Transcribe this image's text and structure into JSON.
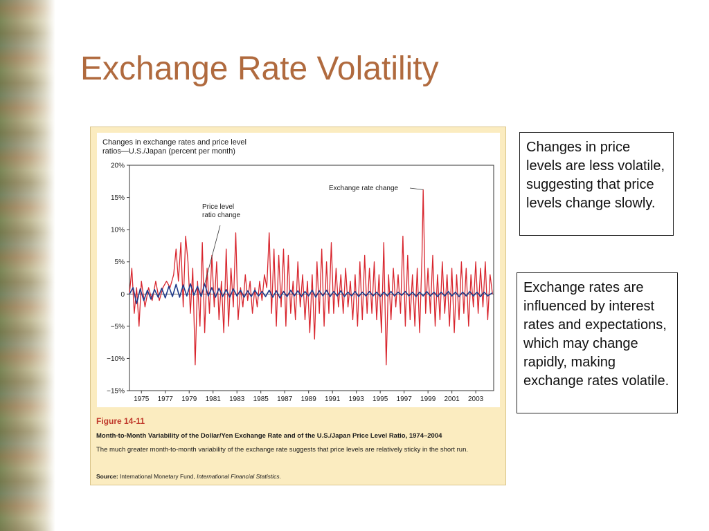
{
  "slide": {
    "title": "Exchange Rate Volatility"
  },
  "figure": {
    "label": "Figure 14-11",
    "caption": "Month-to-Month Variability of the Dollar/Yen Exchange Rate and of the U.S./Japan Price Level Ratio, 1974–2004",
    "description": "The much greater month-to-month variability of the exchange rate suggests that price levels are relatively sticky in the short run.",
    "source_label": "Source:",
    "source_text": "International Monetary Fund,",
    "source_italic": "International Financial Statistics."
  },
  "notes": [
    "Changes in price levels are less volatile, suggesting that price levels change slowly.",
    "Exchange rates are influenced by interest rates and expectations, which may change rapidly, making exchange rates volatile."
  ],
  "colors": {
    "title": "#b06a3e",
    "exchange_rate_line": "#d8262e",
    "price_level_line": "#1f3a8a",
    "figure_bg": "#fbecc0",
    "figure_label": "#c0392b"
  },
  "chart_data": {
    "type": "line",
    "title": "Changes in exchange rates and price level ratios—U.S./Japan (percent per month)",
    "title_lines": [
      "Changes in exchange rates and price level",
      "ratios—U.S./Japan (percent per month)"
    ],
    "xlabel": "",
    "ylabel": "",
    "xlim": [
      1974,
      2004.5
    ],
    "ylim": [
      -15,
      20
    ],
    "y_ticks": [
      {
        "value": 20,
        "label": "20%"
      },
      {
        "value": 15,
        "label": "15%"
      },
      {
        "value": 10,
        "label": "10%"
      },
      {
        "value": 5,
        "label": "5%"
      },
      {
        "value": 0,
        "label": "0"
      },
      {
        "value": -5,
        "label": "−5%"
      },
      {
        "value": -10,
        "label": "−10%"
      },
      {
        "value": -15,
        "label": "−15%"
      }
    ],
    "x_ticks": [
      1975,
      1977,
      1979,
      1981,
      1983,
      1985,
      1987,
      1989,
      1991,
      1993,
      1995,
      1997,
      1999,
      2001,
      2003
    ],
    "grid": false,
    "annotations": [
      {
        "text": "Exchange rate change",
        "series": "exchange",
        "x": 1998.6,
        "y": 16.2
      },
      {
        "text": "Price level\nratio change",
        "series": "price",
        "x": 1980.3,
        "y": 1.6
      }
    ],
    "series": [
      {
        "name": "Exchange rate change",
        "key": "exchange",
        "color": "#d8262e",
        "points": [
          [
            1974.0,
            0
          ],
          [
            1974.2,
            4
          ],
          [
            1974.4,
            -3
          ],
          [
            1974.6,
            1
          ],
          [
            1974.8,
            -5
          ],
          [
            1975.0,
            2
          ],
          [
            1975.3,
            -2
          ],
          [
            1975.6,
            1
          ],
          [
            1975.9,
            -1
          ],
          [
            1976.2,
            2
          ],
          [
            1976.5,
            -1
          ],
          [
            1976.8,
            1
          ],
          [
            1977.1,
            2
          ],
          [
            1977.4,
            1
          ],
          [
            1977.7,
            3
          ],
          [
            1977.9,
            7
          ],
          [
            1978.1,
            2
          ],
          [
            1978.3,
            8
          ],
          [
            1978.5,
            -2
          ],
          [
            1978.7,
            9
          ],
          [
            1978.9,
            5
          ],
          [
            1979.1,
            -3
          ],
          [
            1979.3,
            4
          ],
          [
            1979.5,
            -11
          ],
          [
            1979.7,
            2
          ],
          [
            1979.9,
            -5
          ],
          [
            1980.1,
            8
          ],
          [
            1980.3,
            -6
          ],
          [
            1980.5,
            4
          ],
          [
            1980.7,
            -3
          ],
          [
            1980.9,
            6
          ],
          [
            1981.1,
            -2
          ],
          [
            1981.3,
            5
          ],
          [
            1981.5,
            -4
          ],
          [
            1981.7,
            2
          ],
          [
            1981.9,
            -6
          ],
          [
            1982.1,
            7
          ],
          [
            1982.3,
            -5
          ],
          [
            1982.5,
            4
          ],
          [
            1982.7,
            -2
          ],
          [
            1982.9,
            9.5
          ],
          [
            1983.1,
            -4
          ],
          [
            1983.3,
            1
          ],
          [
            1983.5,
            -2
          ],
          [
            1983.7,
            3
          ],
          [
            1983.9,
            -1
          ],
          [
            1984.1,
            2
          ],
          [
            1984.3,
            -3
          ],
          [
            1984.5,
            1
          ],
          [
            1984.7,
            -2
          ],
          [
            1984.9,
            2
          ],
          [
            1985.1,
            -1
          ],
          [
            1985.3,
            3
          ],
          [
            1985.5,
            1
          ],
          [
            1985.7,
            9.5
          ],
          [
            1985.9,
            -3
          ],
          [
            1986.1,
            7
          ],
          [
            1986.3,
            -5
          ],
          [
            1986.5,
            6
          ],
          [
            1986.7,
            -2
          ],
          [
            1986.9,
            7
          ],
          [
            1987.1,
            -5
          ],
          [
            1987.3,
            6
          ],
          [
            1987.5,
            -3
          ],
          [
            1987.7,
            2
          ],
          [
            1987.9,
            -4
          ],
          [
            1988.1,
            5
          ],
          [
            1988.3,
            -2
          ],
          [
            1988.5,
            3
          ],
          [
            1988.7,
            -4
          ],
          [
            1988.9,
            2
          ],
          [
            1989.1,
            -6
          ],
          [
            1989.3,
            3
          ],
          [
            1989.5,
            -7
          ],
          [
            1989.7,
            5
          ],
          [
            1989.9,
            -3
          ],
          [
            1990.1,
            7
          ],
          [
            1990.3,
            -5
          ],
          [
            1990.5,
            5
          ],
          [
            1990.7,
            -3
          ],
          [
            1990.9,
            8
          ],
          [
            1991.1,
            -3
          ],
          [
            1991.3,
            4
          ],
          [
            1991.5,
            -2
          ],
          [
            1991.7,
            3
          ],
          [
            1991.9,
            -3
          ],
          [
            1992.1,
            4
          ],
          [
            1992.3,
            -2
          ],
          [
            1992.5,
            2
          ],
          [
            1992.7,
            -4
          ],
          [
            1992.9,
            3
          ],
          [
            1993.1,
            -5
          ],
          [
            1993.3,
            5
          ],
          [
            1993.5,
            -4
          ],
          [
            1993.7,
            6
          ],
          [
            1993.9,
            -3
          ],
          [
            1994.1,
            4
          ],
          [
            1994.3,
            -3
          ],
          [
            1994.5,
            5
          ],
          [
            1994.7,
            -4
          ],
          [
            1994.9,
            3
          ],
          [
            1995.1,
            -6
          ],
          [
            1995.3,
            8
          ],
          [
            1995.5,
            -11
          ],
          [
            1995.7,
            3
          ],
          [
            1995.9,
            -4
          ],
          [
            1996.1,
            4
          ],
          [
            1996.3,
            -2
          ],
          [
            1996.5,
            3
          ],
          [
            1996.7,
            -3
          ],
          [
            1996.9,
            9
          ],
          [
            1997.1,
            -5
          ],
          [
            1997.3,
            6
          ],
          [
            1997.5,
            -4
          ],
          [
            1997.7,
            3
          ],
          [
            1997.9,
            -5
          ],
          [
            1998.1,
            4
          ],
          [
            1998.3,
            -6
          ],
          [
            1998.5,
            6
          ],
          [
            1998.6,
            16.2
          ],
          [
            1998.8,
            -3
          ],
          [
            1999.0,
            4
          ],
          [
            1999.2,
            -3
          ],
          [
            1999.4,
            6
          ],
          [
            1999.6,
            -5
          ],
          [
            1999.8,
            3
          ],
          [
            2000.0,
            -4
          ],
          [
            2000.2,
            5
          ],
          [
            2000.4,
            -3
          ],
          [
            2000.6,
            3
          ],
          [
            2000.8,
            -5
          ],
          [
            2001.0,
            4
          ],
          [
            2001.2,
            -6
          ],
          [
            2001.4,
            3
          ],
          [
            2001.6,
            -4
          ],
          [
            2001.8,
            5
          ],
          [
            2002.0,
            -3
          ],
          [
            2002.2,
            4
          ],
          [
            2002.4,
            -5
          ],
          [
            2002.6,
            3
          ],
          [
            2002.8,
            -2
          ],
          [
            2003.0,
            5
          ],
          [
            2003.2,
            -3
          ],
          [
            2003.4,
            4
          ],
          [
            2003.6,
            -2
          ],
          [
            2003.8,
            5
          ],
          [
            2004.0,
            -4
          ],
          [
            2004.2,
            3
          ],
          [
            2004.4,
            0
          ]
        ]
      },
      {
        "name": "Price level ratio change",
        "key": "price",
        "color": "#1f3a8a",
        "points": [
          [
            1974.0,
            0
          ],
          [
            1974.3,
            1
          ],
          [
            1974.6,
            -1.5
          ],
          [
            1974.9,
            0.8
          ],
          [
            1975.2,
            -1
          ],
          [
            1975.5,
            0.6
          ],
          [
            1975.8,
            -0.8
          ],
          [
            1976.1,
            0.7
          ],
          [
            1976.4,
            -0.5
          ],
          [
            1976.7,
            0.9
          ],
          [
            1977.0,
            -0.6
          ],
          [
            1977.3,
            1.2
          ],
          [
            1977.6,
            -0.4
          ],
          [
            1977.9,
            1.5
          ],
          [
            1978.2,
            -0.5
          ],
          [
            1978.5,
            1.4
          ],
          [
            1978.8,
            -0.3
          ],
          [
            1979.1,
            1.6
          ],
          [
            1979.4,
            -0.2
          ],
          [
            1979.7,
            1.2
          ],
          [
            1980.0,
            -0.4
          ],
          [
            1980.3,
            1.6
          ],
          [
            1980.6,
            -0.3
          ],
          [
            1980.9,
            1.0
          ],
          [
            1981.2,
            -0.5
          ],
          [
            1981.5,
            0.9
          ],
          [
            1981.8,
            -0.4
          ],
          [
            1982.1,
            0.7
          ],
          [
            1982.4,
            -0.5
          ],
          [
            1982.7,
            0.8
          ],
          [
            1983.0,
            -0.3
          ],
          [
            1983.3,
            0.6
          ],
          [
            1983.6,
            -0.5
          ],
          [
            1983.9,
            0.5
          ],
          [
            1984.2,
            -0.4
          ],
          [
            1984.5,
            0.6
          ],
          [
            1984.8,
            -0.3
          ],
          [
            1985.1,
            0.4
          ],
          [
            1985.4,
            -0.4
          ],
          [
            1985.7,
            0.6
          ],
          [
            1986.0,
            -0.5
          ],
          [
            1986.3,
            0.5
          ],
          [
            1986.6,
            -0.6
          ],
          [
            1986.9,
            0.4
          ],
          [
            1987.2,
            -0.4
          ],
          [
            1987.5,
            0.6
          ],
          [
            1987.8,
            -0.3
          ],
          [
            1988.1,
            0.5
          ],
          [
            1988.4,
            -0.4
          ],
          [
            1988.7,
            0.4
          ],
          [
            1989.0,
            -0.3
          ],
          [
            1989.3,
            0.6
          ],
          [
            1989.6,
            -0.5
          ],
          [
            1989.9,
            0.5
          ],
          [
            1990.2,
            -0.3
          ],
          [
            1990.5,
            0.6
          ],
          [
            1990.8,
            -0.4
          ],
          [
            1991.1,
            0.4
          ],
          [
            1991.4,
            -0.3
          ],
          [
            1991.7,
            0.5
          ],
          [
            1992.0,
            -0.4
          ],
          [
            1992.3,
            0.3
          ],
          [
            1992.6,
            -0.3
          ],
          [
            1992.9,
            0.4
          ],
          [
            1993.2,
            -0.4
          ],
          [
            1993.5,
            0.3
          ],
          [
            1993.8,
            -0.3
          ],
          [
            1994.1,
            0.4
          ],
          [
            1994.4,
            -0.3
          ],
          [
            1994.7,
            0.3
          ],
          [
            1995.0,
            -0.4
          ],
          [
            1995.3,
            0.3
          ],
          [
            1995.6,
            -0.3
          ],
          [
            1995.9,
            0.4
          ],
          [
            1996.2,
            -0.3
          ],
          [
            1996.5,
            0.3
          ],
          [
            1996.8,
            -0.2
          ],
          [
            1997.1,
            0.4
          ],
          [
            1997.4,
            -0.3
          ],
          [
            1997.7,
            0.3
          ],
          [
            1998.0,
            -0.4
          ],
          [
            1998.3,
            0.3
          ],
          [
            1998.6,
            -0.3
          ],
          [
            1998.9,
            0.4
          ],
          [
            1999.2,
            -0.3
          ],
          [
            1999.5,
            0.3
          ],
          [
            1999.8,
            -0.4
          ],
          [
            2000.1,
            0.3
          ],
          [
            2000.4,
            -0.3
          ],
          [
            2000.7,
            0.4
          ],
          [
            2001.0,
            -0.3
          ],
          [
            2001.3,
            0.3
          ],
          [
            2001.6,
            -0.4
          ],
          [
            2001.9,
            0.3
          ],
          [
            2002.2,
            -0.3
          ],
          [
            2002.5,
            0.4
          ],
          [
            2002.8,
            -0.3
          ],
          [
            2003.1,
            0.3
          ],
          [
            2003.4,
            -0.4
          ],
          [
            2003.7,
            0.3
          ],
          [
            2004.0,
            -0.3
          ],
          [
            2004.4,
            0.2
          ]
        ]
      }
    ]
  }
}
